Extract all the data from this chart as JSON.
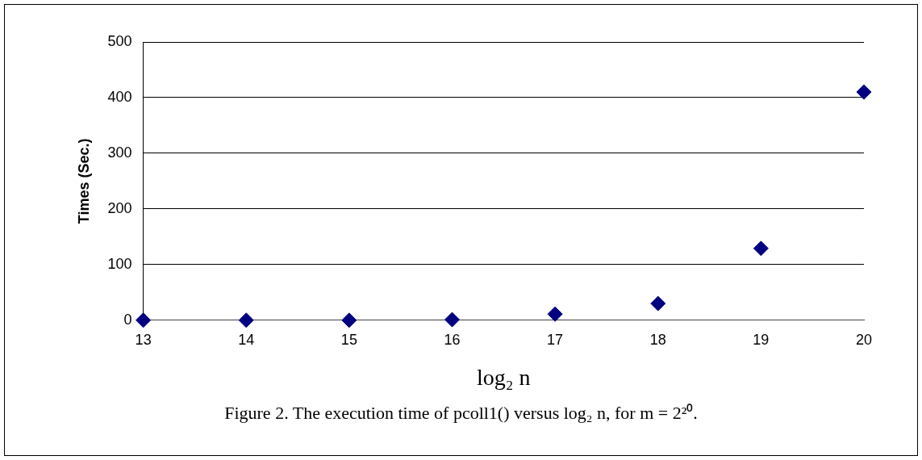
{
  "chart_data": {
    "type": "scatter",
    "xlabel": "log₂ n",
    "ylabel": "Times (Sec.)",
    "categories": [
      "13",
      "14",
      "15",
      "16",
      "17",
      "18",
      "19",
      "20"
    ],
    "series": [
      {
        "color": "#000080",
        "values": [
          0,
          0,
          0,
          1,
          11,
          30,
          129,
          410
        ]
      }
    ],
    "ylim": [
      0,
      500
    ],
    "yticks": [
      0,
      100,
      200,
      300,
      400,
      500
    ],
    "grid": "y",
    "legend": false,
    "marker": "diamond",
    "annotations": [
      "Figure 2.  The execution time of pcoll1() versus log₂ n, for m = 2²⁰."
    ]
  }
}
